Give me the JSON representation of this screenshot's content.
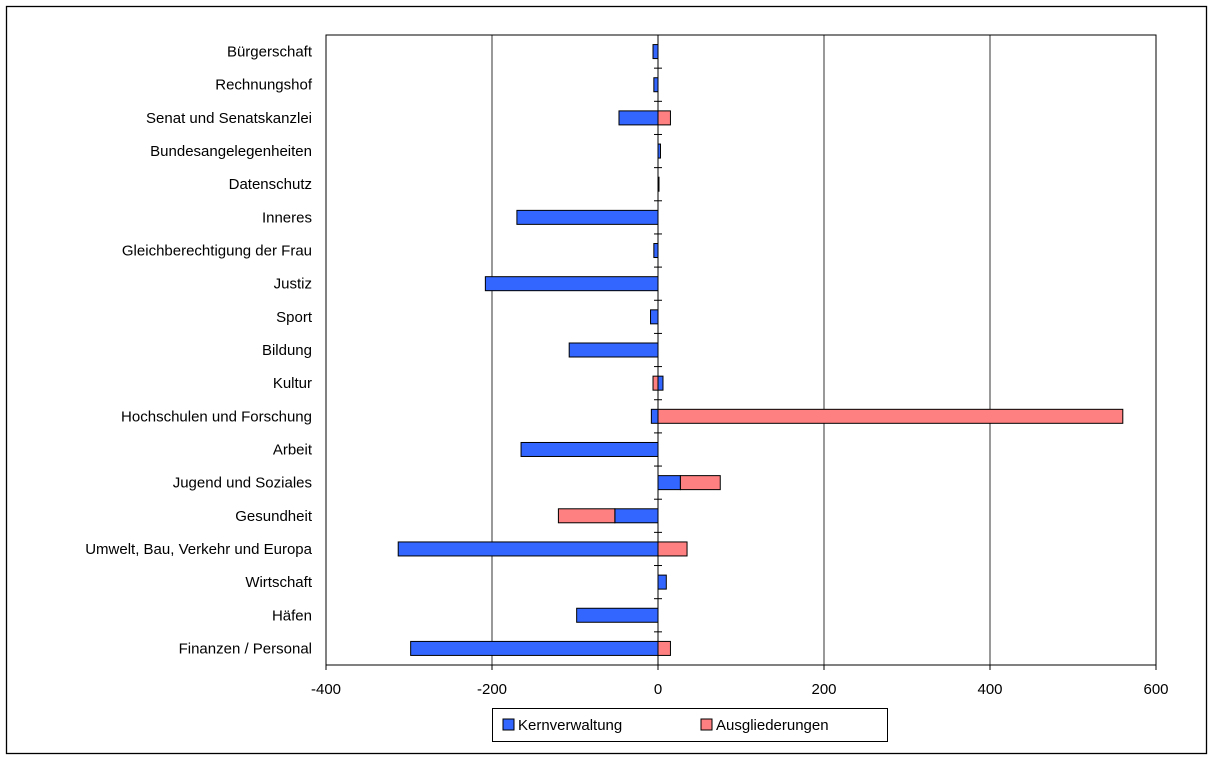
{
  "chart_data": {
    "type": "bar",
    "orientation": "horizontal",
    "stacked": true,
    "categories": [
      "Bürgerschaft",
      "Rechnungshof",
      "Senat und Senatskanzlei",
      "Bundesangelegenheiten",
      "Datenschutz",
      "Inneres",
      "Gleichberechtigung der Frau",
      "Justiz",
      "Sport",
      "Bildung",
      "Kultur",
      "Hochschulen und Forschung",
      "Arbeit",
      "Jugend und Soziales",
      "Gesundheit",
      "Umwelt, Bau, Verkehr und Europa",
      "Wirtschaft",
      "Häfen",
      "Finanzen / Personal"
    ],
    "series": [
      {
        "name": "Kernverwaltung",
        "color": "#3366ff",
        "values": [
          -6,
          -5,
          -47,
          3,
          1,
          -170,
          -5,
          -208,
          -9,
          -107,
          6,
          -8,
          -165,
          27,
          -52,
          -313,
          10,
          -98,
          -298
        ]
      },
      {
        "name": "Ausgliederungen",
        "color": "#ff8080",
        "values": [
          0,
          0,
          15,
          0,
          0,
          0,
          0,
          0,
          0,
          0,
          -6,
          560,
          0,
          48,
          -68,
          35,
          0,
          0,
          15
        ]
      }
    ],
    "xlim": [
      -400,
      600
    ],
    "xticks": [
      -400,
      -200,
      0,
      200,
      400,
      600
    ],
    "grid": true,
    "legend": "bottom",
    "title": "",
    "xlabel": "",
    "ylabel": ""
  }
}
